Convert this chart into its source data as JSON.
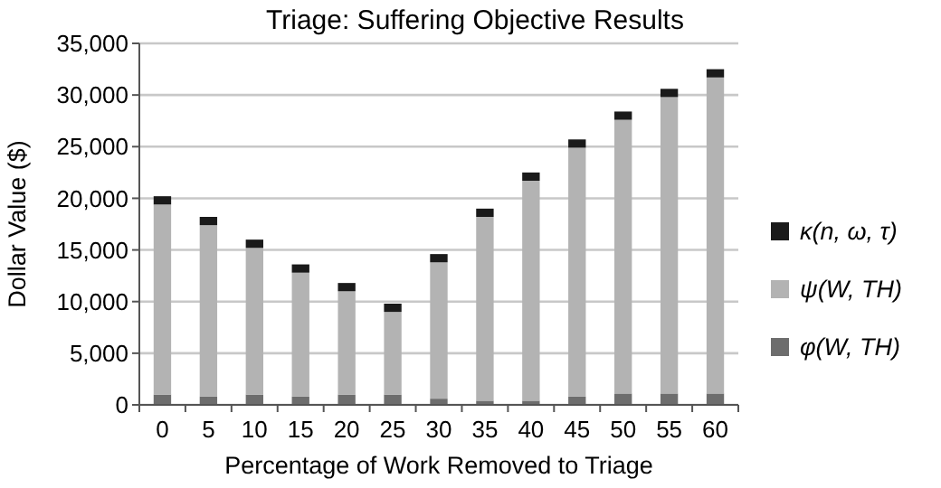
{
  "chart_data": {
    "type": "bar",
    "title": "Triage: Suffering Objective Results",
    "xlabel": "Percentage of Work Removed to Triage",
    "ylabel": "Dollar Value ($)",
    "categories": [
      "0",
      "5",
      "10",
      "15",
      "20",
      "25",
      "30",
      "35",
      "40",
      "45",
      "50",
      "55",
      "60"
    ],
    "stacked": true,
    "grid": "y",
    "legend": "right",
    "ylim": [
      0,
      35000
    ],
    "yticks": [
      {
        "value": 0,
        "label": "0"
      },
      {
        "value": 5000,
        "label": "5,000"
      },
      {
        "value": 10000,
        "label": "10,000"
      },
      {
        "value": 15000,
        "label": "15,000"
      },
      {
        "value": 20000,
        "label": "20,000"
      },
      {
        "value": 25000,
        "label": "25,000"
      },
      {
        "value": 30000,
        "label": "30,000"
      },
      {
        "value": 35000,
        "label": "35,000"
      }
    ],
    "series": [
      {
        "name": "φ(W, TH)",
        "color": "#6d6d6d",
        "values": [
          1000,
          800,
          1000,
          800,
          1000,
          1000,
          600,
          400,
          400,
          800,
          1100,
          1100,
          1100
        ]
      },
      {
        "name": "ψ(W, TH)",
        "color": "#b3b3b3",
        "values": [
          18400,
          16600,
          14200,
          12000,
          10000,
          8000,
          13200,
          17800,
          21300,
          24100,
          26500,
          28700,
          30600
        ]
      },
      {
        "name": "κ(n, ω, τ)",
        "color": "#1a1a1a",
        "values": [
          800,
          800,
          800,
          800,
          800,
          800,
          800,
          800,
          800,
          800,
          800,
          800,
          800
        ]
      }
    ]
  }
}
